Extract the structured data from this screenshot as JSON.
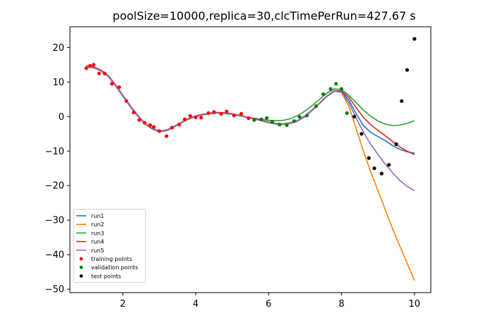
{
  "chart_data": {
    "type": "line",
    "title": "poolSize=10000,replica=30,clcTimePerRun=427.67 s",
    "xlabel": "",
    "ylabel": "",
    "xlim": [
      0.55,
      10.45
    ],
    "ylim": [
      -51,
      26
    ],
    "xticks": [
      2,
      4,
      6,
      8,
      10
    ],
    "yticks": [
      20,
      10,
      0,
      -10,
      -20,
      -30,
      -40,
      -50
    ],
    "grid": false,
    "legend_position": "lower-left",
    "series": [
      {
        "name": "run1",
        "kind": "line",
        "color": "#1f77b4",
        "x": [
          1.0,
          1.2,
          1.4,
          1.6,
          1.8,
          2.0,
          2.2,
          2.4,
          2.6,
          2.8,
          3.0,
          3.2,
          3.4,
          3.6,
          3.8,
          4.0,
          4.2,
          4.4,
          4.6,
          4.8,
          5.0,
          5.2,
          5.4,
          5.6,
          5.8,
          6.0,
          6.2,
          6.4,
          6.6,
          6.8,
          7.0,
          7.2,
          7.4,
          7.6,
          7.8,
          8.0,
          8.2,
          8.4,
          8.6,
          8.8,
          9.0,
          9.2,
          9.4,
          9.6,
          9.8,
          10.0
        ],
        "y": [
          14.5,
          14.2,
          13.3,
          11.7,
          9.0,
          6.0,
          3.0,
          0.3,
          -2.0,
          -3.5,
          -4.3,
          -4.0,
          -3.0,
          -1.8,
          -0.7,
          0.1,
          0.6,
          0.9,
          1.1,
          1.0,
          0.7,
          0.3,
          -0.2,
          -0.7,
          -1.2,
          -1.8,
          -2.2,
          -2.3,
          -2.0,
          -1.3,
          0.0,
          1.8,
          3.8,
          5.8,
          7.3,
          7.2,
          4.8,
          0.8,
          -2.6,
          -4.6,
          -5.8,
          -7.0,
          -8.4,
          -9.5,
          -10.2,
          -10.6
        ]
      },
      {
        "name": "run2",
        "kind": "line",
        "color": "#ff7f0e",
        "x": [
          1.0,
          1.2,
          1.4,
          1.6,
          1.8,
          2.0,
          2.2,
          2.4,
          2.6,
          2.8,
          3.0,
          3.2,
          3.4,
          3.6,
          3.8,
          4.0,
          4.2,
          4.4,
          4.6,
          4.8,
          5.0,
          5.2,
          5.4,
          5.6,
          5.8,
          6.0,
          6.2,
          6.4,
          6.6,
          6.8,
          7.0,
          7.2,
          7.4,
          7.6,
          7.8,
          8.0,
          8.2,
          8.4,
          8.6,
          8.8,
          9.0,
          9.2,
          9.4,
          9.6,
          9.8,
          10.0
        ],
        "y": [
          14.6,
          14.3,
          13.4,
          11.8,
          9.1,
          6.1,
          3.1,
          0.4,
          -1.9,
          -3.4,
          -4.2,
          -3.9,
          -3.0,
          -1.8,
          -0.7,
          0.1,
          0.6,
          0.9,
          1.1,
          1.0,
          0.7,
          0.3,
          -0.2,
          -0.7,
          -1.2,
          -1.7,
          -2.1,
          -2.2,
          -1.9,
          -1.2,
          0.1,
          1.9,
          3.9,
          5.9,
          7.4,
          7.0,
          3.0,
          -3.5,
          -10.0,
          -16.0,
          -21.5,
          -27.0,
          -32.5,
          -37.5,
          -42.5,
          -47.5
        ]
      },
      {
        "name": "run3",
        "kind": "line",
        "color": "#2ca02c",
        "x": [
          1.0,
          1.2,
          1.4,
          1.6,
          1.8,
          2.0,
          2.2,
          2.4,
          2.6,
          2.8,
          3.0,
          3.2,
          3.4,
          3.6,
          3.8,
          4.0,
          4.2,
          4.4,
          4.6,
          4.8,
          5.0,
          5.2,
          5.4,
          5.6,
          5.8,
          6.0,
          6.2,
          6.4,
          6.6,
          6.8,
          7.0,
          7.2,
          7.4,
          7.6,
          7.8,
          8.0,
          8.2,
          8.4,
          8.6,
          8.8,
          9.0,
          9.2,
          9.4,
          9.6,
          9.8,
          10.0
        ],
        "y": [
          14.4,
          14.1,
          13.2,
          11.6,
          8.9,
          5.9,
          2.9,
          0.2,
          -2.1,
          -3.6,
          -4.4,
          -4.1,
          -3.1,
          -1.9,
          -0.8,
          0.0,
          0.5,
          0.8,
          1.0,
          0.9,
          0.6,
          0.2,
          -0.2,
          -0.5,
          -0.8,
          -1.1,
          -1.2,
          -1.1,
          -0.6,
          0.3,
          1.6,
          3.2,
          5.0,
          6.8,
          8.0,
          7.8,
          6.2,
          4.0,
          1.9,
          0.1,
          -1.3,
          -2.2,
          -2.6,
          -2.5,
          -2.0,
          -1.2
        ]
      },
      {
        "name": "run4",
        "kind": "line",
        "color": "#d62728",
        "x": [
          1.0,
          1.2,
          1.4,
          1.6,
          1.8,
          2.0,
          2.2,
          2.4,
          2.6,
          2.8,
          3.0,
          3.2,
          3.4,
          3.6,
          3.8,
          4.0,
          4.2,
          4.4,
          4.6,
          4.8,
          5.0,
          5.2,
          5.4,
          5.6,
          5.8,
          6.0,
          6.2,
          6.4,
          6.6,
          6.8,
          7.0,
          7.2,
          7.4,
          7.6,
          7.8,
          8.0,
          8.2,
          8.4,
          8.6,
          8.8,
          9.0,
          9.2,
          9.4,
          9.6,
          9.8,
          10.0
        ],
        "y": [
          14.7,
          14.4,
          13.5,
          11.9,
          9.2,
          6.2,
          3.2,
          0.5,
          -1.9,
          -3.4,
          -4.2,
          -3.9,
          -2.9,
          -1.7,
          -0.6,
          0.2,
          0.7,
          1.0,
          1.2,
          1.1,
          0.8,
          0.4,
          -0.1,
          -0.6,
          -1.1,
          -1.6,
          -2.0,
          -2.1,
          -1.8,
          -1.1,
          0.2,
          2.0,
          4.0,
          6.0,
          7.5,
          7.4,
          5.6,
          2.6,
          -0.2,
          -2.4,
          -4.0,
          -5.6,
          -7.2,
          -8.8,
          -10.0,
          -11.0
        ]
      },
      {
        "name": "run5",
        "kind": "line",
        "color": "#9467bd",
        "x": [
          1.0,
          1.2,
          1.4,
          1.6,
          1.8,
          2.0,
          2.2,
          2.4,
          2.6,
          2.8,
          3.0,
          3.2,
          3.4,
          3.6,
          3.8,
          4.0,
          4.2,
          4.4,
          4.6,
          4.8,
          5.0,
          5.2,
          5.4,
          5.6,
          5.8,
          6.0,
          6.2,
          6.4,
          6.6,
          6.8,
          7.0,
          7.2,
          7.4,
          7.6,
          7.8,
          8.0,
          8.2,
          8.4,
          8.6,
          8.8,
          9.0,
          9.2,
          9.4,
          9.6,
          9.8,
          10.0
        ],
        "y": [
          14.5,
          14.2,
          13.3,
          11.7,
          9.0,
          6.0,
          3.0,
          0.3,
          -2.0,
          -3.5,
          -4.3,
          -4.0,
          -3.0,
          -1.8,
          -0.7,
          0.1,
          0.6,
          0.9,
          1.1,
          1.0,
          0.7,
          0.3,
          -0.2,
          -0.7,
          -1.2,
          -1.7,
          -2.1,
          -2.1,
          -1.8,
          -1.1,
          0.2,
          2.0,
          4.0,
          6.0,
          7.4,
          7.0,
          4.0,
          -0.5,
          -4.5,
          -8.0,
          -11.0,
          -13.8,
          -16.3,
          -18.5,
          -20.2,
          -21.5
        ]
      },
      {
        "name": "training points",
        "kind": "scatter",
        "color": "#ff0000",
        "x": [
          1.0,
          1.1,
          1.2,
          1.35,
          1.5,
          1.7,
          1.9,
          2.1,
          2.3,
          2.45,
          2.6,
          2.75,
          2.85,
          3.0,
          3.2,
          3.35,
          3.55,
          3.7,
          3.85,
          4.0,
          4.15,
          4.35,
          4.5,
          4.7,
          4.85,
          5.05,
          5.25,
          5.45
        ],
        "y": [
          14.0,
          14.7,
          15.0,
          12.5,
          12.5,
          9.5,
          8.5,
          4.5,
          1.2,
          -1.0,
          -1.8,
          -2.5,
          -3.0,
          -4.2,
          -5.7,
          -3.2,
          -2.3,
          -0.8,
          0.2,
          -0.2,
          -0.3,
          1.0,
          1.3,
          0.8,
          1.5,
          0.3,
          0.8,
          -0.5
        ]
      },
      {
        "name": "validation points",
        "kind": "scatter",
        "color": "#008000",
        "x": [
          5.6,
          5.8,
          5.95,
          6.1,
          6.3,
          6.5,
          6.7,
          6.85,
          7.05,
          7.3,
          7.5,
          7.7,
          7.85,
          8.0,
          8.15
        ],
        "y": [
          -1.0,
          -0.8,
          -0.4,
          -1.5,
          -2.3,
          -2.5,
          -1.3,
          -0.1,
          0.3,
          3.0,
          6.5,
          8.0,
          9.5,
          8.0,
          1.0
        ]
      },
      {
        "name": "test points",
        "kind": "scatter",
        "color": "#000000",
        "x": [
          8.35,
          8.55,
          8.75,
          8.9,
          9.1,
          9.3,
          9.5,
          9.65,
          9.8,
          10.0
        ],
        "y": [
          0.0,
          -5.0,
          -12.0,
          -15.0,
          -16.5,
          -14.0,
          -8.0,
          4.5,
          13.5,
          22.5
        ]
      }
    ]
  }
}
